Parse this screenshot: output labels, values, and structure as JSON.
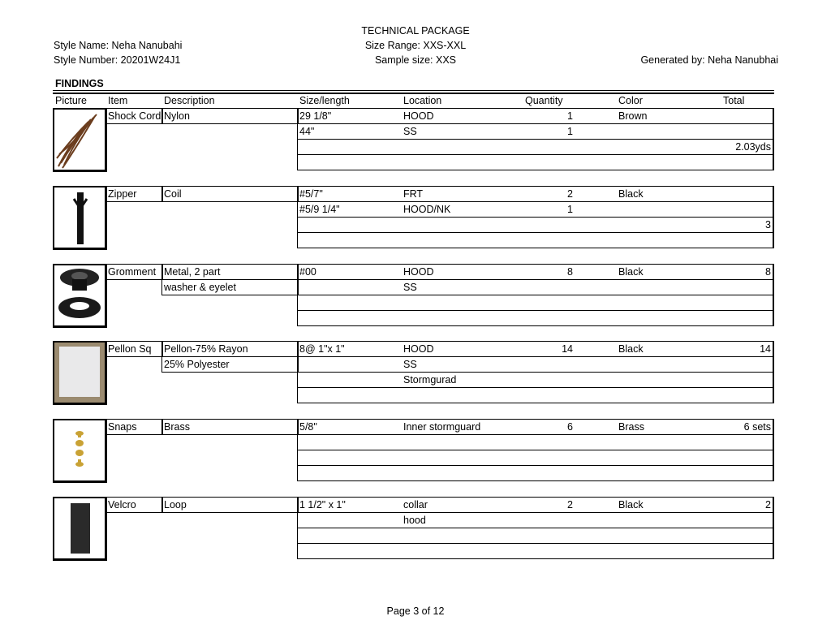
{
  "header": {
    "title": "TECHNICAL PACKAGE",
    "style_name": "Style Name: Neha Nanubahi",
    "style_number": "Style Number: 20201W24J1",
    "size_range": "Size Range: XXS-XXL",
    "sample_size": "Sample size: XXS",
    "generated_by": "Generated by: Neha Nanubhai"
  },
  "section_title": "FINDINGS",
  "columns": [
    "Picture",
    "Item",
    "Description",
    "Size/length",
    "Location",
    "Quantity",
    "Color",
    "Total"
  ],
  "findings": [
    {
      "item": "Shock Cord",
      "image": "shock-cord-image",
      "desc": [
        "Nylon"
      ],
      "rows": [
        [
          "29 1/8\"",
          "HOOD",
          "1",
          "Brown",
          ""
        ],
        [
          "44\"",
          "SS",
          "1",
          "",
          ""
        ],
        [
          "",
          "",
          "",
          "",
          "2.03yds"
        ],
        [
          "",
          "",
          "",
          "",
          ""
        ]
      ]
    },
    {
      "item": "Zipper",
      "image": "zipper-image",
      "desc": [
        "Coil"
      ],
      "rows": [
        [
          "#5/7\"",
          "FRT",
          "2",
          "Black",
          ""
        ],
        [
          "#5/9 1/4\"",
          "HOOD/NK",
          "1",
          "",
          ""
        ],
        [
          "",
          "",
          "",
          "",
          "3"
        ],
        [
          "",
          "",
          "",
          "",
          ""
        ]
      ]
    },
    {
      "item": "Gromment",
      "image": "grommet-image",
      "desc": [
        "Metal, 2 part",
        "washer & eyelet"
      ],
      "rows": [
        [
          "#00",
          "HOOD",
          "8",
          "Black",
          "8"
        ],
        [
          "",
          "SS",
          "",
          "",
          ""
        ],
        [
          "",
          "",
          "",
          "",
          ""
        ],
        [
          "",
          "",
          "",
          "",
          ""
        ]
      ]
    },
    {
      "item": "Pellon Sq",
      "image": "pellon-image",
      "desc": [
        "Pellon-75% Rayon",
        "25% Polyester"
      ],
      "rows": [
        [
          "8@ 1\"x 1\"",
          "HOOD",
          "14",
          "Black",
          "14"
        ],
        [
          "",
          "SS",
          "",
          "",
          ""
        ],
        [
          "",
          "Stormgurad",
          "",
          "",
          ""
        ],
        [
          "",
          "",
          "",
          "",
          ""
        ]
      ]
    },
    {
      "item": "Snaps",
      "image": "snaps-image",
      "desc": [
        "Brass"
      ],
      "rows": [
        [
          "5/8\"",
          "Inner stormguard",
          "6",
          "Brass",
          "6 sets"
        ],
        [
          "",
          "",
          "",
          "",
          ""
        ],
        [
          "",
          "",
          "",
          "",
          ""
        ],
        [
          "",
          "",
          "",
          "",
          ""
        ]
      ]
    },
    {
      "item": "Velcro",
      "image": "velcro-image",
      "desc": [
        "Loop"
      ],
      "rows": [
        [
          "1 1/2\" x 1\"",
          "collar",
          "2",
          "Black",
          "2"
        ],
        [
          "",
          "hood",
          "",
          "",
          ""
        ],
        [
          "",
          "",
          "",
          "",
          ""
        ],
        [
          "",
          "",
          "",
          "",
          ""
        ]
      ]
    }
  ],
  "footer": {
    "page": "Page 3 of 12"
  }
}
